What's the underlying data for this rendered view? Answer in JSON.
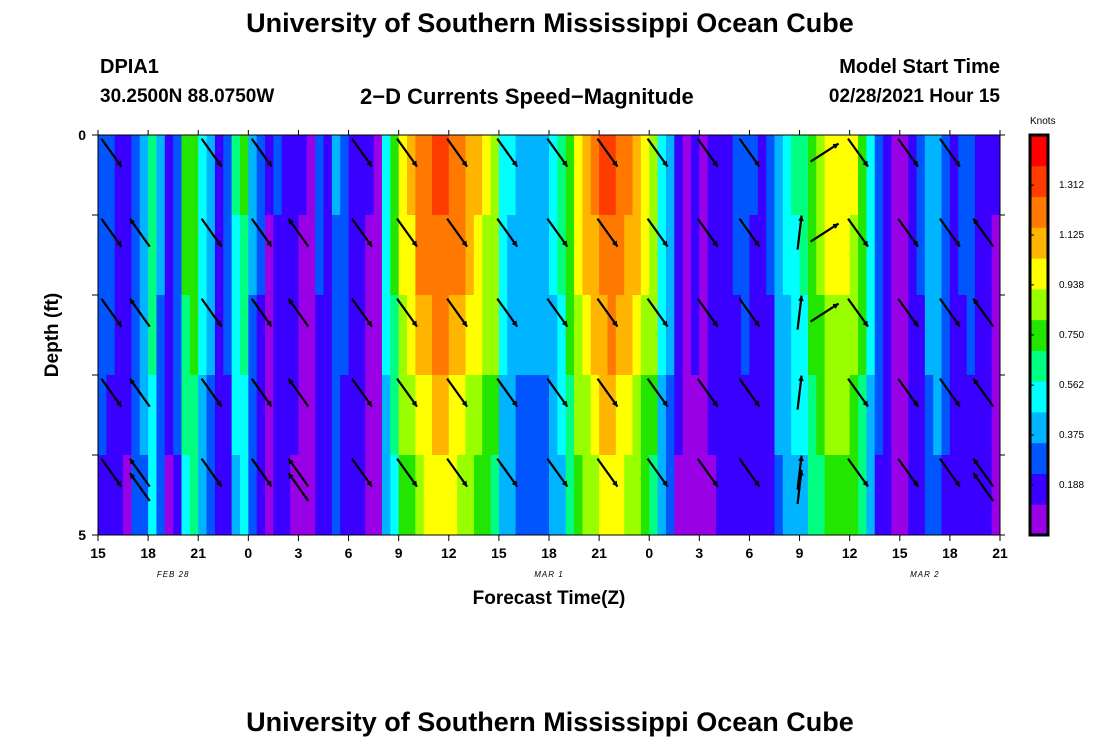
{
  "header": {
    "title": "University of Southern Mississippi Ocean Cube",
    "station_id": "DPIA1",
    "station_coords": "30.2500N 88.0750W",
    "plot_title": "2−D Currents Speed−Magnitude",
    "model_label": "Model Start Time",
    "model_time": "02/28/2021 Hour 15"
  },
  "footer": {
    "title": "University of Southern Mississippi Ocean Cube"
  },
  "chart_data": {
    "type": "heatmap",
    "title": "2−D Currents Speed−Magnitude",
    "xlabel": "Forecast Time(Z)",
    "ylabel": "Depth (ft)",
    "x_tick_labels": [
      "15",
      "18",
      "21",
      "0",
      "3",
      "6",
      "9",
      "12",
      "15",
      "18",
      "21",
      "0",
      "3",
      "6",
      "9",
      "12",
      "15",
      "18",
      "21"
    ],
    "date_labels": [
      {
        "text": "FEB 28",
        "hours": 4.5
      },
      {
        "text": "MAR 1",
        "hours": 27
      },
      {
        "text": "MAR 2",
        "hours": 49.5
      }
    ],
    "x_range_hours": [
      0,
      54
    ],
    "hours_per_column": 0.5,
    "y_range": [
      0,
      5
    ],
    "y_tick_labels": [
      "0",
      "5"
    ],
    "depth_levels": 5,
    "colorbar": {
      "title": "Knots",
      "tick_labels": [
        "1.312",
        "1.125",
        "0.938",
        "0.750",
        "0.562",
        "0.375",
        "0.188"
      ],
      "range": [
        0,
        1.5
      ],
      "colors": [
        "#9a00e6",
        "#3a00ff",
        "#0055ff",
        "#00b4ff",
        "#00ffff",
        "#00ff80",
        "#22e600",
        "#99ff00",
        "#ffff00",
        "#ffb400",
        "#ff7800",
        "#ff3c00",
        "#ff0000"
      ]
    },
    "speed_profile_knots": [
      0.3,
      0.28,
      0.35,
      0.2,
      0.15,
      0.18,
      0.32,
      0.45,
      0.5,
      0.65,
      0.38,
      0.1,
      0.15,
      0.3,
      0.52,
      0.75,
      0.8,
      0.6,
      0.52,
      0.42,
      0.22,
      0.18,
      0.26,
      0.48,
      0.58,
      0.7,
      0.62,
      0.38,
      0.25,
      0.18,
      0.12,
      0.24,
      0.2,
      0.18,
      0.15,
      0.18,
      0.12,
      0.1,
      0.3,
      0.25,
      0.18,
      0.15,
      0.35,
      0.28,
      0.22,
      0.2,
      0.18,
      0.15,
      0.12,
      0.1,
      0.45,
      0.55,
      0.75,
      0.9,
      1.0,
      1.05,
      1.12,
      1.22,
      1.25,
      1.3,
      1.3,
      1.32,
      1.3,
      1.25,
      1.22,
      1.18,
      1.12,
      1.08,
      1.02,
      0.95,
      0.9,
      0.78,
      0.55,
      0.48,
      0.45,
      0.42,
      0.4,
      0.38,
      0.4,
      0.42,
      0.46,
      0.5,
      0.55,
      0.62,
      0.8,
      0.9,
      1.0,
      1.12,
      1.18,
      1.2,
      1.28,
      1.28,
      1.3,
      1.25,
      1.2,
      1.18,
      1.12,
      1.05,
      0.98,
      0.9,
      0.78,
      0.55,
      0.4,
      0.3,
      0.15,
      0.1,
      0.18,
      0.14,
      0.08,
      0.12,
      0.15,
      0.18,
      0.22,
      0.2,
      0.25,
      0.3,
      0.28,
      0.24,
      0.22,
      0.2,
      0.25,
      0.38,
      0.45,
      0.5,
      0.55,
      0.58,
      0.62,
      0.7,
      0.78,
      0.85,
      0.95,
      1.0,
      1.02,
      1.05,
      1.0,
      0.95,
      0.9,
      0.78,
      0.55,
      0.4,
      0.3,
      0.22,
      0.15,
      0.08,
      0.05,
      0.12,
      0.2,
      0.25,
      0.3,
      0.4,
      0.45,
      0.35,
      0.3,
      0.22,
      0.2,
      0.25,
      0.28,
      0.24,
      0.2,
      0.18,
      0.15,
      0.12,
      0.1
    ],
    "depth_decay_by_level": [
      1.0,
      0.96,
      0.9,
      0.82,
      0.74
    ],
    "arrows": [
      {
        "hours": 0.8,
        "levels": [
          0,
          1,
          2,
          3,
          4
        ],
        "dir": "se",
        "alt": "nw"
      },
      {
        "hours": 2.5,
        "levels": [
          1,
          2,
          3,
          4,
          5
        ],
        "dir": "nw"
      },
      {
        "hours": 6.8,
        "levels": [
          0,
          1,
          2,
          3,
          4
        ],
        "dir": "se"
      },
      {
        "hours": 9.8,
        "levels": [
          0,
          1,
          2,
          3,
          4
        ],
        "dir": "se"
      },
      {
        "hours": 12.0,
        "levels": [
          1,
          2,
          3,
          4,
          5
        ],
        "dir": "nw"
      },
      {
        "hours": 15.8,
        "levels": [
          0,
          1,
          2,
          3,
          4
        ],
        "dir": "se"
      },
      {
        "hours": 18.5,
        "levels": [
          0,
          1,
          2,
          3,
          4
        ],
        "dir": "se"
      },
      {
        "hours": 21.5,
        "levels": [
          0,
          1,
          2,
          3,
          4
        ],
        "dir": "se"
      },
      {
        "hours": 24.5,
        "levels": [
          0,
          1,
          2,
          3,
          4
        ],
        "dir": "se"
      },
      {
        "hours": 27.5,
        "levels": [
          0,
          1,
          2,
          3,
          4
        ],
        "dir": "se"
      },
      {
        "hours": 30.5,
        "levels": [
          0,
          1,
          2,
          3,
          4
        ],
        "dir": "se"
      },
      {
        "hours": 33.5,
        "levels": [
          0,
          1,
          2,
          3,
          4
        ],
        "dir": "se"
      },
      {
        "hours": 36.5,
        "levels": [
          0,
          1,
          2,
          3,
          4
        ],
        "dir": "se"
      },
      {
        "hours": 39.0,
        "levels": [
          0,
          1,
          2,
          3,
          4
        ],
        "dir": "se"
      },
      {
        "hours": 42.0,
        "levels": [
          1,
          2,
          3,
          4,
          5
        ],
        "dir": "n"
      },
      {
        "hours": 43.5,
        "levels": [
          0,
          1,
          2
        ],
        "dir": "ne"
      },
      {
        "hours": 45.5,
        "levels": [
          0,
          1,
          2,
          3,
          4
        ],
        "dir": "se"
      },
      {
        "hours": 48.5,
        "levels": [
          0,
          1,
          2,
          3,
          4
        ],
        "dir": "se"
      },
      {
        "hours": 51.0,
        "levels": [
          0,
          1,
          2,
          3,
          4
        ],
        "dir": "se"
      },
      {
        "hours": 53.0,
        "levels": [
          1,
          2,
          3,
          4,
          5
        ],
        "dir": "nw"
      }
    ]
  }
}
